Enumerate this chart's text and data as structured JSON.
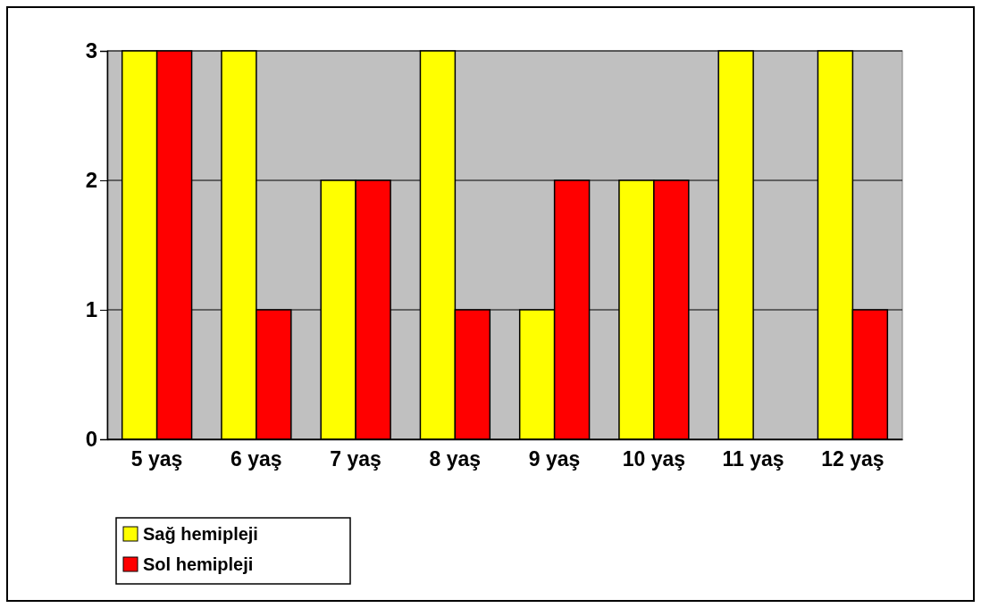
{
  "chart_data": {
    "type": "bar",
    "categories": [
      "5 yaş",
      "6 yaş",
      "7 yaş",
      "8 yaş",
      "9 yaş",
      "10 yaş",
      "11 yaş",
      "12 yaş"
    ],
    "series": [
      {
        "name": "Sağ hemipleji",
        "color": "#ffff00",
        "values": [
          3,
          3,
          2,
          3,
          1,
          2,
          3,
          3
        ]
      },
      {
        "name": "Sol hemipleji",
        "color": "#ff0000",
        "values": [
          3,
          1,
          2,
          1,
          2,
          2,
          0,
          1
        ]
      }
    ],
    "ylim": [
      0,
      3
    ],
    "yticks": [
      0,
      1,
      2,
      3
    ],
    "grid": "y",
    "legend": "bottom left"
  }
}
